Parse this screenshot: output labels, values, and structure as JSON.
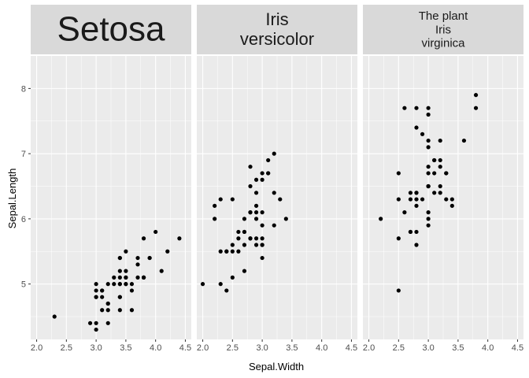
{
  "chart_data": {
    "type": "scatter",
    "xlabel": "Sepal.Width",
    "ylabel": "Sepal.Length",
    "xlim": [
      1.9,
      4.6
    ],
    "ylim": [
      4.15,
      8.5
    ],
    "x_ticks": [
      2.0,
      2.5,
      3.0,
      3.5,
      4.0,
      4.5
    ],
    "x_tick_labels": [
      "2.0",
      "2.5",
      "3.0",
      "3.5",
      "4.0",
      "4.5"
    ],
    "y_ticks": [
      5,
      6,
      7,
      8
    ],
    "y_tick_labels": [
      "5",
      "6",
      "7",
      "8"
    ],
    "grid": true,
    "colors": {
      "panel": "#ebebeb",
      "grid_major": "#ffffff",
      "strip": "#d9d9d9",
      "point": "#000000"
    },
    "facets": [
      {
        "label_lines": [
          "Setosa"
        ],
        "points": [
          [
            3.5,
            5.1
          ],
          [
            3.0,
            4.9
          ],
          [
            3.2,
            4.7
          ],
          [
            3.1,
            4.6
          ],
          [
            3.6,
            5.0
          ],
          [
            3.9,
            5.4
          ],
          [
            3.4,
            4.6
          ],
          [
            3.4,
            5.0
          ],
          [
            2.9,
            4.4
          ],
          [
            3.1,
            4.9
          ],
          [
            3.7,
            5.4
          ],
          [
            3.4,
            4.8
          ],
          [
            3.0,
            4.8
          ],
          [
            3.0,
            4.3
          ],
          [
            4.0,
            5.8
          ],
          [
            4.4,
            5.7
          ],
          [
            3.9,
            5.4
          ],
          [
            3.5,
            5.1
          ],
          [
            3.8,
            5.7
          ],
          [
            3.8,
            5.1
          ],
          [
            3.4,
            5.4
          ],
          [
            3.7,
            5.1
          ],
          [
            3.6,
            4.6
          ],
          [
            3.3,
            5.1
          ],
          [
            3.4,
            4.8
          ],
          [
            3.0,
            5.0
          ],
          [
            3.4,
            5.0
          ],
          [
            3.5,
            5.2
          ],
          [
            3.4,
            5.2
          ],
          [
            3.2,
            4.7
          ],
          [
            3.1,
            4.8
          ],
          [
            3.4,
            5.4
          ],
          [
            4.1,
            5.2
          ],
          [
            4.2,
            5.5
          ],
          [
            3.1,
            4.9
          ],
          [
            3.2,
            5.0
          ],
          [
            3.5,
            5.5
          ],
          [
            3.6,
            4.9
          ],
          [
            3.0,
            4.4
          ],
          [
            3.4,
            5.1
          ],
          [
            3.5,
            5.0
          ],
          [
            2.3,
            4.5
          ],
          [
            3.2,
            4.4
          ],
          [
            3.5,
            5.0
          ],
          [
            3.8,
            5.1
          ],
          [
            3.0,
            4.8
          ],
          [
            3.8,
            5.1
          ],
          [
            3.2,
            4.6
          ],
          [
            3.7,
            5.3
          ],
          [
            3.3,
            5.0
          ]
        ]
      },
      {
        "label_lines": [
          "Iris",
          "versicolor"
        ],
        "points": [
          [
            3.2,
            7.0
          ],
          [
            3.2,
            6.4
          ],
          [
            3.1,
            6.9
          ],
          [
            2.3,
            5.5
          ],
          [
            2.8,
            6.5
          ],
          [
            2.8,
            5.7
          ],
          [
            3.3,
            6.3
          ],
          [
            2.4,
            4.9
          ],
          [
            2.9,
            6.6
          ],
          [
            2.7,
            5.2
          ],
          [
            2.0,
            5.0
          ],
          [
            3.0,
            5.9
          ],
          [
            2.2,
            6.0
          ],
          [
            2.9,
            6.1
          ],
          [
            2.9,
            5.6
          ],
          [
            3.1,
            6.7
          ],
          [
            3.0,
            5.6
          ],
          [
            2.7,
            5.8
          ],
          [
            2.2,
            6.2
          ],
          [
            2.5,
            5.6
          ],
          [
            3.2,
            5.9
          ],
          [
            2.8,
            6.1
          ],
          [
            2.5,
            6.3
          ],
          [
            2.8,
            6.1
          ],
          [
            2.9,
            6.4
          ],
          [
            3.0,
            6.6
          ],
          [
            2.8,
            6.8
          ],
          [
            3.0,
            6.7
          ],
          [
            2.9,
            6.0
          ],
          [
            2.6,
            5.7
          ],
          [
            2.4,
            5.5
          ],
          [
            2.4,
            5.5
          ],
          [
            2.7,
            5.8
          ],
          [
            2.7,
            6.0
          ],
          [
            3.0,
            5.4
          ],
          [
            3.4,
            6.0
          ],
          [
            3.1,
            6.7
          ],
          [
            2.3,
            6.3
          ],
          [
            3.0,
            5.6
          ],
          [
            2.5,
            5.5
          ],
          [
            2.6,
            5.5
          ],
          [
            3.0,
            6.1
          ],
          [
            2.6,
            5.8
          ],
          [
            2.3,
            5.0
          ],
          [
            2.7,
            5.6
          ],
          [
            3.0,
            5.7
          ],
          [
            2.9,
            5.7
          ],
          [
            2.9,
            6.2
          ],
          [
            2.5,
            5.1
          ],
          [
            2.8,
            5.7
          ]
        ]
      },
      {
        "label_lines": [
          "The plant",
          "Iris",
          "virginica"
        ],
        "points": [
          [
            3.3,
            6.3
          ],
          [
            2.7,
            5.8
          ],
          [
            3.0,
            7.1
          ],
          [
            2.9,
            6.3
          ],
          [
            3.0,
            6.5
          ],
          [
            3.0,
            7.6
          ],
          [
            2.5,
            4.9
          ],
          [
            2.9,
            7.3
          ],
          [
            2.5,
            6.7
          ],
          [
            3.6,
            7.2
          ],
          [
            3.2,
            6.5
          ],
          [
            2.7,
            6.4
          ],
          [
            3.0,
            6.8
          ],
          [
            2.5,
            5.7
          ],
          [
            2.8,
            5.8
          ],
          [
            3.2,
            6.4
          ],
          [
            3.0,
            6.5
          ],
          [
            3.8,
            7.7
          ],
          [
            2.6,
            7.7
          ],
          [
            2.2,
            6.0
          ],
          [
            3.2,
            6.9
          ],
          [
            2.8,
            5.6
          ],
          [
            2.8,
            7.7
          ],
          [
            2.7,
            6.3
          ],
          [
            3.3,
            6.7
          ],
          [
            3.2,
            7.2
          ],
          [
            2.8,
            6.2
          ],
          [
            3.0,
            6.1
          ],
          [
            2.8,
            6.4
          ],
          [
            3.0,
            7.2
          ],
          [
            2.8,
            7.4
          ],
          [
            3.8,
            7.9
          ],
          [
            2.8,
            6.4
          ],
          [
            2.8,
            6.3
          ],
          [
            2.6,
            6.1
          ],
          [
            3.0,
            7.7
          ],
          [
            3.4,
            6.3
          ],
          [
            3.1,
            6.4
          ],
          [
            3.0,
            6.0
          ],
          [
            3.1,
            6.9
          ],
          [
            3.1,
            6.7
          ],
          [
            3.1,
            6.9
          ],
          [
            2.7,
            5.8
          ],
          [
            3.2,
            6.8
          ],
          [
            3.3,
            6.7
          ],
          [
            3.0,
            6.7
          ],
          [
            2.5,
            6.3
          ],
          [
            3.0,
            6.5
          ],
          [
            3.4,
            6.2
          ],
          [
            3.0,
            5.9
          ]
        ]
      }
    ]
  }
}
